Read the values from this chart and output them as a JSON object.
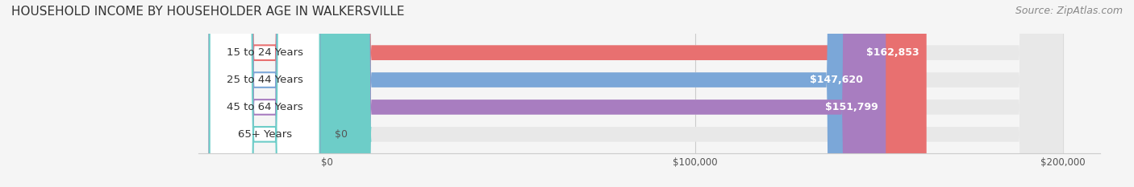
{
  "title": "HOUSEHOLD INCOME BY HOUSEHOLDER AGE IN WALKERSVILLE",
  "source": "Source: ZipAtlas.com",
  "categories": [
    "15 to 24 Years",
    "25 to 44 Years",
    "45 to 64 Years",
    "65+ Years"
  ],
  "values": [
    162853,
    147620,
    151799,
    0
  ],
  "bar_colors": [
    "#E87070",
    "#7BA7D8",
    "#A87DC0",
    "#6DCDC8"
  ],
  "xlim": [
    0,
    200000
  ],
  "xticks": [
    0,
    100000,
    200000
  ],
  "xticklabels": [
    "$0",
    "$100,000",
    "$200,000"
  ],
  "value_labels": [
    "$162,853",
    "$147,620",
    "$151,799",
    "$0"
  ],
  "background_color": "#f5f5f5",
  "bar_background_color": "#e8e8e8",
  "title_fontsize": 11,
  "source_fontsize": 9,
  "label_fontsize": 9.5,
  "bar_height": 0.55
}
